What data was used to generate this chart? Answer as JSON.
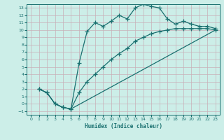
{
  "xlabel": "Humidex (Indice chaleur)",
  "bg_color": "#cceee8",
  "line_color": "#1a7070",
  "grid_color": "#c8b0b8",
  "xlim": [
    -0.5,
    23.5
  ],
  "ylim": [
    -1.5,
    13.5
  ],
  "xticks": [
    0,
    1,
    2,
    3,
    4,
    5,
    6,
    7,
    8,
    9,
    10,
    11,
    12,
    13,
    14,
    15,
    16,
    17,
    18,
    19,
    20,
    21,
    22,
    23
  ],
  "yticks": [
    -1,
    0,
    1,
    2,
    3,
    4,
    5,
    6,
    7,
    8,
    9,
    10,
    11,
    12,
    13
  ],
  "curve1_x": [
    1,
    2,
    3,
    4,
    5,
    6,
    7,
    8,
    9,
    10,
    11,
    12,
    13,
    14,
    15,
    16,
    17,
    18,
    19,
    20,
    21,
    22,
    23
  ],
  "curve1_y": [
    2,
    1.5,
    0,
    -0.5,
    -0.7,
    5.5,
    9.8,
    11.0,
    10.5,
    11.2,
    12.0,
    11.5,
    13.0,
    13.5,
    13.2,
    13.0,
    11.5,
    10.8,
    11.2,
    10.8,
    10.5,
    10.5,
    10.2
  ],
  "curve2_x": [
    1,
    2,
    3,
    4,
    5,
    6,
    7,
    8,
    9,
    10,
    11,
    12,
    13,
    14,
    15,
    16,
    17,
    18,
    19,
    20,
    21,
    22,
    23
  ],
  "curve2_y": [
    2,
    1.5,
    0,
    -0.5,
    -0.7,
    1.5,
    3.0,
    4.0,
    5.0,
    6.0,
    6.8,
    7.5,
    8.5,
    9.0,
    9.5,
    9.8,
    10.0,
    10.2,
    10.2,
    10.2,
    10.2,
    10.2,
    10.0
  ],
  "curve3_x": [
    1,
    2,
    3,
    4,
    5,
    23
  ],
  "curve3_y": [
    2,
    1.5,
    0,
    -0.5,
    -0.7,
    10.0
  ]
}
